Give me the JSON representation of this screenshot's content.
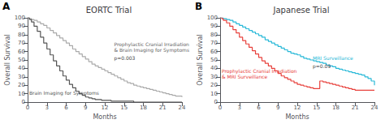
{
  "chart_data": [
    {
      "type": "step",
      "title": "EORTC Trial",
      "panel_label": "A",
      "xlabel": "Months",
      "ylabel": "Overall Survival",
      "xlim": [
        0,
        24
      ],
      "ylim": [
        0,
        100
      ],
      "xticks": [
        0,
        3,
        6,
        9,
        12,
        15,
        18,
        21,
        24
      ],
      "yticks": [
        0,
        10,
        20,
        30,
        40,
        50,
        60,
        70,
        80,
        90,
        100
      ],
      "grid": false,
      "x": [
        0,
        0.3,
        0.6,
        1,
        1.5,
        2,
        2.5,
        3,
        3.5,
        4,
        4.5,
        5,
        5.5,
        6,
        6.5,
        7,
        7.5,
        8,
        8.5,
        9,
        9.5,
        10,
        10.5,
        11,
        11.5,
        12,
        12.5,
        13,
        13.5,
        14,
        14.5,
        15,
        15.5,
        16,
        16.5,
        17,
        17.5,
        18,
        18.5,
        19,
        19.5,
        20,
        20.5,
        21,
        21.5,
        22,
        22.5,
        23,
        23.5,
        24
      ],
      "series": [
        {
          "color": "#aaaaaa",
          "values": [
            100,
            99,
            98,
            97,
            95,
            93,
            91,
            88,
            85,
            82,
            79,
            76,
            73,
            70,
            67,
            63,
            60,
            57,
            54,
            51,
            48,
            45,
            43,
            41,
            39,
            37,
            35,
            33,
            31,
            29,
            27,
            25,
            23,
            22,
            20,
            19,
            18,
            17,
            16,
            15,
            14,
            13,
            12,
            11,
            10,
            9,
            8,
            7,
            7,
            6
          ]
        },
        {
          "color": "#555555",
          "values": [
            100,
            98,
            95,
            90,
            84,
            77,
            70,
            63,
            56,
            49,
            43,
            37,
            31,
            26,
            21,
            17,
            13,
            10,
            8,
            6,
            5,
            4,
            3,
            3,
            2,
            2,
            2,
            1,
            1,
            1,
            1,
            1,
            1,
            1,
            0,
            0,
            0,
            0,
            0,
            0,
            0,
            0,
            0,
            0,
            0,
            0,
            0,
            0,
            0,
            0
          ]
        }
      ],
      "annotations": [
        {
          "text": "Prophylactic Cranial Irradiation\n& Brain Imaging for Symptoms",
          "color": "#666666"
        },
        {
          "text": "p=0.003",
          "color": "#444444"
        },
        {
          "text": "Brain Imaging for Symptoms",
          "color": "#555555"
        }
      ]
    },
    {
      "type": "step",
      "title": "Japanese Trial",
      "panel_label": "B",
      "xlabel": "Months",
      "ylabel": "Overall Survival",
      "xlim": [
        0,
        24
      ],
      "ylim": [
        0,
        100
      ],
      "xticks": [
        0,
        3,
        6,
        9,
        12,
        15,
        18,
        21,
        24
      ],
      "yticks": [
        0,
        10,
        20,
        30,
        40,
        50,
        60,
        70,
        80,
        90,
        100
      ],
      "grid": false,
      "x": [
        0,
        0.3,
        0.5,
        1,
        1.5,
        2,
        2.5,
        3,
        3.5,
        4,
        4.5,
        5,
        5.5,
        6,
        6.5,
        7,
        7.5,
        8,
        8.5,
        9,
        9.5,
        10,
        10.5,
        11,
        11.5,
        12,
        12.5,
        13,
        13.5,
        14,
        14.5,
        15,
        15.5,
        16,
        16.5,
        17,
        17.5,
        18,
        18.5,
        19,
        19.5,
        20,
        20.5,
        21,
        21.5,
        22,
        22.5,
        23,
        23.5,
        24
      ],
      "series": [
        {
          "color": "#29b9d8",
          "values": [
            100,
            100,
            99,
            98,
            97,
            95,
            93,
            91,
            89,
            87,
            85,
            83,
            81,
            79,
            77,
            74,
            72,
            70,
            68,
            66,
            64,
            62,
            60,
            58,
            57,
            56,
            54,
            52,
            51,
            50,
            49,
            48,
            47,
            46,
            44,
            43,
            42,
            40,
            39,
            38,
            37,
            36,
            35,
            34,
            33,
            32,
            30,
            28,
            25,
            20
          ]
        },
        {
          "color": "#e8413c",
          "values": [
            100,
            99,
            97,
            94,
            90,
            86,
            82,
            77,
            73,
            69,
            65,
            61,
            57,
            53,
            49,
            46,
            43,
            40,
            37,
            34,
            31,
            29,
            27,
            25,
            23,
            21,
            20,
            19,
            18,
            17,
            16,
            16,
            25,
            24,
            23,
            22,
            21,
            20,
            19,
            18,
            17,
            16,
            15,
            14,
            14,
            14,
            14,
            14,
            14,
            14
          ]
        }
      ],
      "annotations": [
        {
          "text": "MRI Surveillance",
          "color": "#29b9d8"
        },
        {
          "text": "p=0.09",
          "color": "#444444"
        },
        {
          "text": "Prophylactic Cranial Irradiation\n& MRI Surveillance",
          "color": "#e8413c"
        }
      ]
    }
  ]
}
